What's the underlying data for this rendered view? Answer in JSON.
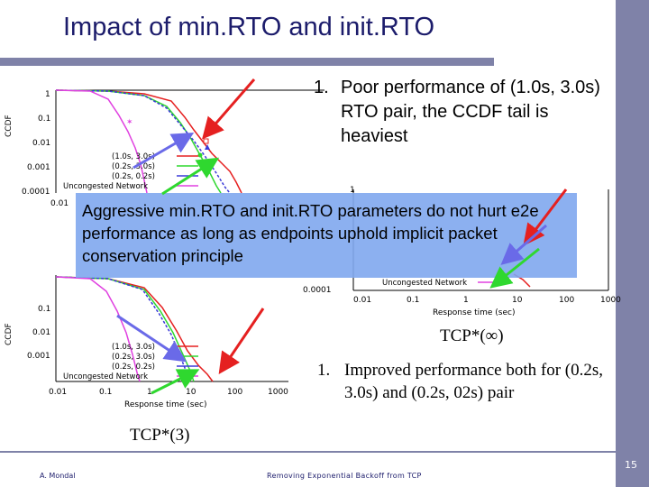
{
  "slide": {
    "title": "Impact of min.RTO and init.RTO",
    "callout_top": {
      "number": "1.",
      "text": "Poor performance of (1.0s, 3.0s) RTO pair, the CCDF tail is heaviest"
    },
    "blue_box_text": "Aggressive min.RTO and init.RTO parameters do not hurt e2e performance as long as endpoints uphold implicit packet conservation principle",
    "tcp_inf_label": "TCP*(∞)",
    "callout_bottom": {
      "number": "1.",
      "text": "Improved performance both for (0.2s, 3.0s) and (0.2s, 02s) pair"
    },
    "tcp_3_label": "TCP*(3)",
    "footer": {
      "author": "A. Mondal",
      "title": "Removing Exponential Backoff from TCP",
      "page": "15"
    }
  },
  "colors": {
    "accent_band": "#7f82a8",
    "title_color": "#1c1c6b",
    "highlight_box": "#7fa7ee",
    "arrow_red": "#e52020",
    "arrow_blue": "#6a6ae8",
    "arrow_green": "#2fd82f"
  },
  "plot_top": {
    "ylabel": "CCDF",
    "yticks": [
      "1",
      "0.1",
      "0.01",
      "0.001",
      "0.0001"
    ],
    "xtick_first": "0.01",
    "legend": [
      "(1.0s, 3.0s)",
      "(0.2s, 3.0s)",
      "(0.2s, 0.2s)",
      "Uncongested Network"
    ]
  },
  "plot_right": {
    "ytick_top": "1",
    "ytick_bottom": "0.0001",
    "xticks": [
      "0.01",
      "0.1",
      "1",
      "10",
      "100",
      "1000"
    ],
    "xlabel": "Response time (sec)",
    "legend_visible": "Uncongested Network"
  },
  "plot_bottom": {
    "ylabel": "CCDF",
    "yticks": [
      "0.1",
      "0.01",
      "0.001"
    ],
    "xticks": [
      "0.01",
      "0.1",
      "1",
      "10",
      "100",
      "1000"
    ],
    "xlabel": "Response time (sec)",
    "legend": [
      "(1.0s, 3.0s)",
      "(0.2s, 3.0s)",
      "(0.2s, 0.2s)",
      "Uncongested Network"
    ]
  }
}
